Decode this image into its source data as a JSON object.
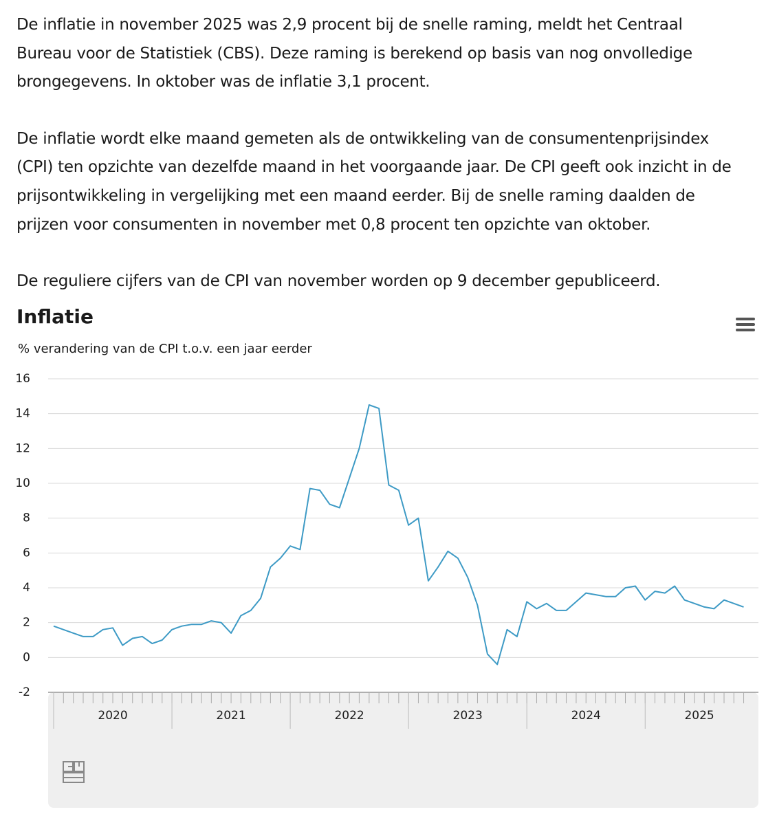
{
  "paragraphs": [
    [
      "De inflatie in november 2025 was 2,9 procent bij de snelle raming, meldt het Centraal",
      "Bureau voor de Statistiek (CBS). Deze raming is berekend op basis van nog onvolledige",
      "brongegevens. In oktober was de inflatie 3,1 procent."
    ],
    [
      "De inflatie wordt elke maand gemeten als de ontwikkeling van de consumentenprijsindex",
      "(CPI) ten opzichte van dezelfde maand in het voorgaande jaar. De CPI geeft ook inzicht in de",
      "prijsontwikkeling in vergelijking met een maand eerder. Bij de snelle raming daalden de",
      "prijzen voor consumenten in november met 0,8 procent ten opzichte van oktober."
    ],
    [
      "De reguliere cijfers van de CPI van november worden op 9 december gepubliceerd."
    ]
  ],
  "chart_data": {
    "type": "line",
    "title": "Inflatie",
    "subtitle": "% verandering van de CPI t.o.v. een jaar eerder",
    "x": [
      2020,
      2020.083,
      2020.167,
      2020.25,
      2020.333,
      2020.417,
      2020.5,
      2020.583,
      2020.667,
      2020.75,
      2020.833,
      2020.917,
      2021,
      2021.083,
      2021.167,
      2021.25,
      2021.333,
      2021.417,
      2021.5,
      2021.583,
      2021.667,
      2021.75,
      2021.833,
      2021.917,
      2022,
      2022.083,
      2022.167,
      2022.25,
      2022.333,
      2022.417,
      2022.5,
      2022.583,
      2022.667,
      2022.75,
      2022.833,
      2022.917,
      2023,
      2023.083,
      2023.167,
      2023.25,
      2023.333,
      2023.417,
      2023.5,
      2023.583,
      2023.667,
      2023.75,
      2023.833,
      2023.917,
      2024,
      2024.083,
      2024.167,
      2024.25,
      2024.333,
      2024.417,
      2024.5,
      2024.583,
      2024.667,
      2024.75,
      2024.833,
      2024.917,
      2025,
      2025.083,
      2025.167,
      2025.25,
      2025.333,
      2025.417,
      2025.5,
      2025.583,
      2025.667,
      2025.75,
      2025.833
    ],
    "series": [
      {
        "name": "Inflatie",
        "color": "#3d9ac5",
        "values": [
          1.8,
          1.6,
          1.4,
          1.2,
          1.2,
          1.6,
          1.7,
          0.7,
          1.1,
          1.2,
          0.8,
          1.0,
          1.6,
          1.8,
          1.9,
          1.9,
          2.1,
          2.0,
          1.4,
          2.4,
          2.7,
          3.4,
          5.2,
          5.7,
          6.4,
          6.2,
          9.7,
          9.6,
          8.8,
          8.6,
          10.3,
          12.0,
          14.5,
          14.3,
          9.9,
          9.6,
          7.6,
          8.0,
          4.4,
          5.2,
          6.1,
          5.7,
          4.6,
          3.0,
          0.2,
          -0.4,
          1.6,
          1.2,
          3.2,
          2.8,
          3.1,
          2.7,
          2.7,
          3.2,
          3.7,
          3.6,
          3.5,
          3.5,
          4.0,
          4.1,
          3.3,
          3.8,
          3.7,
          4.1,
          3.3,
          3.1,
          2.9,
          2.8,
          3.3,
          3.1,
          2.9
        ]
      }
    ],
    "xlim": [
      2020,
      2025.917
    ],
    "xticks": [
      2020,
      2021,
      2022,
      2023,
      2024,
      2025
    ],
    "ylim": [
      -2,
      16
    ],
    "yticks": [
      -2,
      0,
      2,
      4,
      6,
      8,
      10,
      12,
      14,
      16
    ],
    "grid": true
  }
}
